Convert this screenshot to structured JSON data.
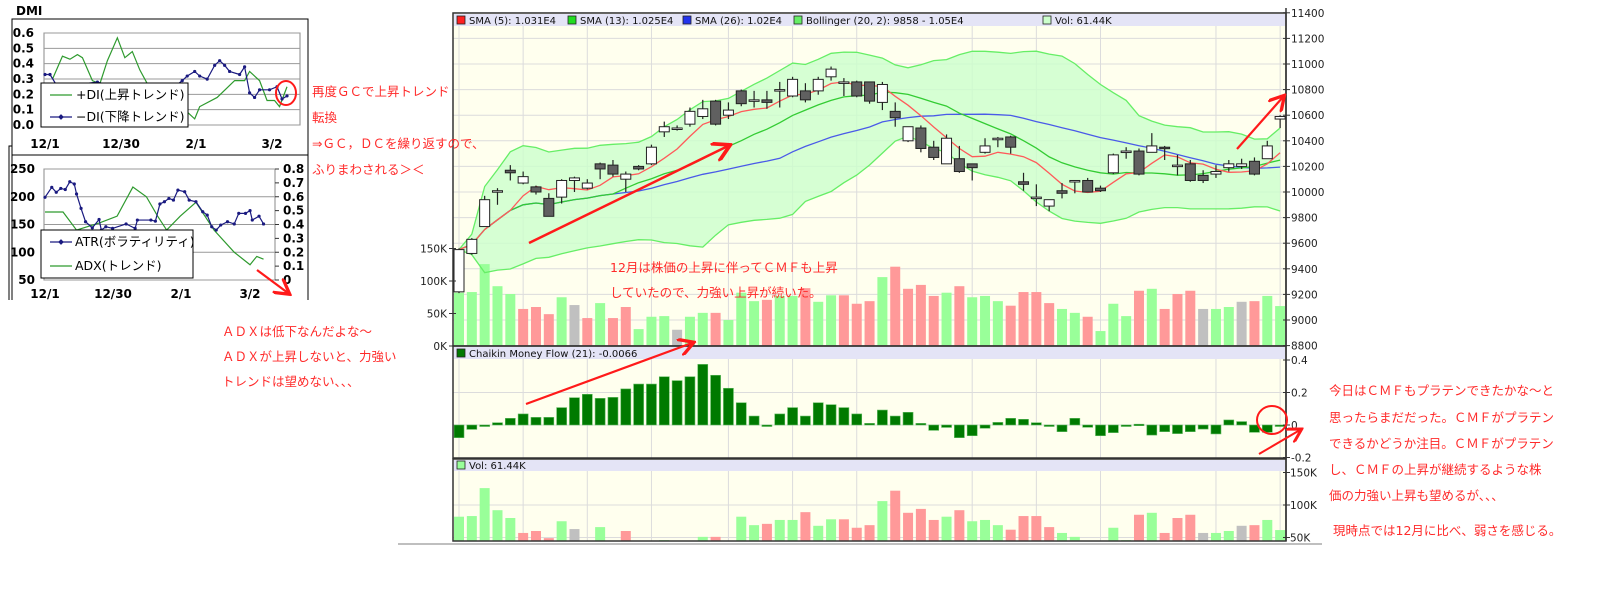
{
  "dmi_panel": {
    "title": "DMI",
    "top_chart": {
      "type": "line",
      "y_ticks": [
        "0.6",
        "0.5",
        "0.4",
        "0.3",
        "0.2",
        "0.1",
        "0.0"
      ],
      "x_ticks": [
        "12/1",
        "12/30",
        "2/1",
        "3/2"
      ],
      "series": [
        {
          "name": "+DI(上昇トレンド)",
          "color": "#2e9a2e",
          "points": [
            [
              "12/4",
              0.3
            ],
            [
              "12/8",
              0.45
            ],
            [
              "12/11",
              0.43
            ],
            [
              "12/14",
              0.46
            ],
            [
              "12/16",
              0.44
            ],
            [
              "12/20",
              0.29
            ],
            [
              "12/23",
              0.27
            ],
            [
              "12/26",
              0.42
            ],
            [
              "12/30",
              0.57
            ],
            [
              "1/2",
              0.44
            ],
            [
              "1/5",
              0.48
            ],
            [
              "1/8",
              0.36
            ],
            [
              "1/11",
              0.27
            ],
            [
              "1/16",
              0.23
            ],
            [
              "1/22",
              0.21
            ],
            [
              "1/26",
              0.1
            ],
            [
              "1/30",
              0.04
            ],
            [
              "2/1",
              0.12
            ],
            [
              "2/8",
              0.18
            ],
            [
              "2/15",
              0.29
            ],
            [
              "2/19",
              0.29
            ],
            [
              "2/21",
              0.35
            ],
            [
              "2/25",
              0.29
            ],
            [
              "2/28",
              0.16
            ],
            [
              "3/3",
              0.16
            ],
            [
              "3/5",
              0.12
            ],
            [
              "3/8",
              0.25
            ]
          ]
        },
        {
          "name": "−DI(下降トレンド)",
          "color": "#1a1a80",
          "points": [
            [
              "12/1",
              0.33
            ],
            [
              "12/3",
              0.33
            ],
            [
              "12/6",
              0.25
            ],
            [
              "12/22",
              0.28
            ],
            [
              "12/27",
              0.26
            ],
            [
              "1/14",
              0.25
            ],
            [
              "1/22",
              0.25
            ],
            [
              "1/25",
              0.29
            ],
            [
              "1/27",
              0.32
            ],
            [
              "1/30",
              0.35
            ],
            [
              "2/1",
              0.32
            ],
            [
              "2/4",
              0.3
            ],
            [
              "2/7",
              0.39
            ],
            [
              "2/9",
              0.42
            ],
            [
              "2/11",
              0.39
            ],
            [
              "2/13",
              0.35
            ],
            [
              "2/17",
              0.33
            ],
            [
              "2/19",
              0.38
            ],
            [
              "2/21",
              0.21
            ],
            [
              "2/23",
              0.18
            ],
            [
              "2/25",
              0.23
            ],
            [
              "3/1",
              0.23
            ],
            [
              "3/4",
              0.25
            ],
            [
              "3/6",
              0.17
            ],
            [
              "3/8",
              0.19
            ]
          ]
        }
      ]
    },
    "bottom_chart": {
      "type": "line",
      "y_left_ticks": [
        "250",
        "200",
        "150",
        "100",
        "50"
      ],
      "y_right_ticks": [
        "0.8",
        "0.7",
        "0.6",
        "0.5",
        "0.4",
        "0.3",
        "0.2",
        "0.1",
        "0"
      ],
      "x_ticks": [
        "12/1",
        "12/30",
        "2/1",
        "3/2"
      ],
      "series": [
        {
          "name": "ATR(ボラティリティ)",
          "axis": "left",
          "color": "#1a1a80",
          "points": [
            [
              "12/1",
              199
            ],
            [
              "12/4",
              217
            ],
            [
              "12/6",
              208
            ],
            [
              "12/8",
              215
            ],
            [
              "12/10",
              213
            ],
            [
              "12/12",
              227
            ],
            [
              "12/14",
              223
            ],
            [
              "12/15",
              205
            ],
            [
              "12/17",
              179
            ],
            [
              "12/19",
              155
            ],
            [
              "12/22",
              144
            ],
            [
              "12/25",
              159
            ],
            [
              "12/26",
              140
            ],
            [
              "12/28",
              146
            ],
            [
              "12/31",
              143
            ],
            [
              "1/6",
              151
            ],
            [
              "1/10",
              143
            ],
            [
              "1/11",
              158
            ],
            [
              "1/17",
              158
            ],
            [
              "1/19",
              156
            ],
            [
              "1/21",
              187
            ],
            [
              "1/23",
              191
            ],
            [
              "1/25",
              197
            ],
            [
              "1/27",
              194
            ],
            [
              "1/29",
              212
            ],
            [
              "2/1",
              209
            ],
            [
              "2/3",
              194
            ],
            [
              "2/6",
              191
            ],
            [
              "2/9",
              173
            ],
            [
              "2/11",
              167
            ],
            [
              "2/13",
              146
            ],
            [
              "2/15",
              140
            ],
            [
              "2/17",
              149
            ],
            [
              "2/20",
              155
            ],
            [
              "2/23",
              151
            ],
            [
              "2/25",
              170
            ],
            [
              "2/28",
              170
            ],
            [
              "3/2",
              175
            ],
            [
              "3/3",
              158
            ],
            [
              "3/6",
              165
            ],
            [
              "3/8",
              151
            ]
          ]
        },
        {
          "name": "ADX(トレンド)",
          "axis": "right",
          "color": "#2e9a2e",
          "points": [
            [
              "12/1",
              0.49
            ],
            [
              "12/9",
              0.49
            ],
            [
              "12/15",
              0.36
            ],
            [
              "12/25",
              0.41
            ],
            [
              "1/2",
              0.46
            ],
            [
              "1/9",
              0.67
            ],
            [
              "1/15",
              0.6
            ],
            [
              "1/20",
              0.46
            ],
            [
              "1/24",
              0.36
            ],
            [
              "1/30",
              0.46
            ],
            [
              "2/6",
              0.56
            ],
            [
              "2/14",
              0.36
            ],
            [
              "2/23",
              0.2
            ],
            [
              "3/2",
              0.11
            ],
            [
              "3/5",
              0.17
            ],
            [
              "3/8",
              0.15
            ]
          ]
        }
      ]
    }
  },
  "notes": {
    "gc": [
      "再度ＧＣで上昇トレンド",
      "転換",
      "⇒ＧＣ，ＤＣを繰り返すので、",
      "ふりまわされる＞＜"
    ],
    "adx": [
      "ＡＤＸは低下なんだよな～",
      "ＡＤＸが上昇しないと、力強い",
      "トレンドは望めない、、、"
    ],
    "december": [
      "12月は株価の上昇に伴ってＣＭＦも上昇",
      "していたので、力強い上昇が続いた。"
    ],
    "cmf": [
      "今日はＣＭＦもプラテンできたかな～と",
      "思ったらまだだった。ＣＭＦがプラテン",
      "できるかどうか注目。ＣＭＦがプラテン",
      "し、ＣＭＦの上昇が継続するような株",
      "価の力強い上昇も望めるが、、、",
      "現時点では12月に比べ、弱さを感じる。"
    ]
  },
  "colors": {
    "annotation": "#ff2a2a",
    "sma5": "#ff5a5a",
    "sma13": "#33cc33",
    "sma26": "#4a5ae8",
    "bollinger": "#66ee66",
    "vol_up": "#99ff99",
    "vol_down": "#ff9999",
    "vol_flat": "#c0c0c0",
    "cmf": "#007a00",
    "plot_bg": "#ffffee",
    "header_bg": "#e4e4f6"
  },
  "chart_data": {
    "type": "candlestick",
    "legend": [
      {
        "label": "SMA (5): 1.031E4",
        "color": "#ff2020"
      },
      {
        "label": "SMA (13): 1.025E4",
        "color": "#22dd22"
      },
      {
        "label": "SMA (26): 1.02E4",
        "color": "#2233ee"
      },
      {
        "label": "Bollinger (20, 2): 9858 - 1.05E4",
        "color": "#66ee66"
      },
      {
        "label": "Vol: 61.44K",
        "color": "#ccffcc"
      }
    ],
    "price_ticks": [
      8800,
      9000,
      9200,
      9400,
      9600,
      9800,
      10000,
      10200,
      10400,
      10600,
      10800,
      11000,
      11200,
      11400
    ],
    "volume_ticks": [
      "0K",
      "50K",
      "100K",
      "150K"
    ],
    "ohlc": [
      [
        9220,
        9560,
        9210,
        9550
      ],
      [
        9520,
        9640,
        9510,
        9630
      ],
      [
        9730,
        9970,
        9730,
        9940
      ],
      [
        10000,
        10030,
        9900,
        10010
      ],
      [
        10170,
        10210,
        10090,
        10150
      ],
      [
        10070,
        10160,
        10060,
        10120
      ],
      [
        10040,
        10050,
        9980,
        10000
      ],
      [
        9950,
        9990,
        9810,
        9810
      ],
      [
        9960,
        10100,
        9910,
        10090
      ],
      [
        10090,
        10120,
        10000,
        10110
      ],
      [
        10030,
        10100,
        10020,
        10070
      ],
      [
        10220,
        10230,
        10100,
        10180
      ],
      [
        10210,
        10250,
        10120,
        10140
      ],
      [
        10100,
        10160,
        10000,
        10140
      ],
      [
        10200,
        10210,
        10170,
        10180
      ],
      [
        10220,
        10370,
        10210,
        10350
      ],
      [
        10470,
        10550,
        10430,
        10510
      ],
      [
        10500,
        10520,
        10480,
        10500
      ],
      [
        10530,
        10660,
        10510,
        10630
      ],
      [
        10590,
        10720,
        10570,
        10650
      ],
      [
        10710,
        10720,
        10520,
        10530
      ],
      [
        10600,
        10700,
        10570,
        10640
      ],
      [
        10790,
        10800,
        10670,
        10690
      ],
      [
        10710,
        10790,
        10660,
        10720
      ],
      [
        10720,
        10790,
        10650,
        10700
      ],
      [
        10790,
        10860,
        10660,
        10800
      ],
      [
        10750,
        10900,
        10740,
        10880
      ],
      [
        10790,
        10850,
        10700,
        10720
      ],
      [
        10790,
        10900,
        10760,
        10880
      ],
      [
        10900,
        10980,
        10870,
        10960
      ],
      [
        10850,
        10890,
        10750,
        10860
      ],
      [
        10860,
        10870,
        10740,
        10750
      ],
      [
        10860,
        10860,
        10690,
        10710
      ],
      [
        10700,
        10860,
        10640,
        10840
      ],
      [
        10630,
        10700,
        10510,
        10580
      ],
      [
        10400,
        10510,
        10390,
        10510
      ],
      [
        10500,
        10520,
        10310,
        10340
      ],
      [
        10350,
        10400,
        10250,
        10270
      ],
      [
        10220,
        10450,
        10220,
        10420
      ],
      [
        10260,
        10360,
        10150,
        10160
      ],
      [
        10220,
        10220,
        10090,
        10190
      ],
      [
        10310,
        10420,
        10300,
        10360
      ],
      [
        10420,
        10430,
        10350,
        10420
      ],
      [
        10430,
        10440,
        10300,
        10350
      ],
      [
        10080,
        10150,
        10010,
        10060
      ],
      [
        9950,
        10060,
        9890,
        9960
      ],
      [
        9890,
        9940,
        9850,
        9940
      ],
      [
        10010,
        10070,
        9950,
        9990
      ],
      [
        10080,
        10090,
        9990,
        10090
      ],
      [
        10090,
        10110,
        10000,
        10000
      ],
      [
        10030,
        10050,
        10000,
        10010
      ],
      [
        10150,
        10300,
        10140,
        10290
      ],
      [
        10310,
        10350,
        10260,
        10320
      ],
      [
        10320,
        10340,
        10130,
        10140
      ],
      [
        10310,
        10460,
        10310,
        10360
      ],
      [
        10350,
        10360,
        10250,
        10340
      ],
      [
        10200,
        10290,
        10130,
        10210
      ],
      [
        10220,
        10250,
        10080,
        10090
      ],
      [
        10130,
        10170,
        10070,
        10090
      ],
      [
        10140,
        10210,
        10110,
        10160
      ],
      [
        10190,
        10250,
        10160,
        10220
      ],
      [
        10200,
        10260,
        10180,
        10220
      ],
      [
        10240,
        10270,
        10130,
        10140
      ],
      [
        10260,
        10400,
        10260,
        10360
      ],
      [
        10570,
        10600,
        10500,
        10590
      ]
    ],
    "volume_k": [
      82,
      83,
      126,
      92,
      80,
      57,
      60,
      49,
      75,
      63,
      43,
      66,
      43,
      60,
      26,
      45,
      46,
      25,
      45,
      51,
      51,
      40,
      82,
      69,
      71,
      77,
      77,
      89,
      68,
      78,
      78,
      65,
      69,
      106,
      122,
      88,
      94,
      77,
      82,
      92,
      75,
      77,
      69,
      62,
      83,
      83,
      66,
      57,
      51,
      45,
      23,
      65,
      46,
      85,
      88,
      57,
      80,
      85,
      57,
      57,
      60,
      68,
      69,
      77,
      61.44
    ],
    "volume_dir": [
      "u",
      "u",
      "u",
      "u",
      "u",
      "d",
      "d",
      "d",
      "u",
      "f",
      "d",
      "u",
      "d",
      "d",
      "u",
      "u",
      "u",
      "f",
      "u",
      "u",
      "d",
      "u",
      "u",
      "u",
      "d",
      "u",
      "u",
      "d",
      "u",
      "u",
      "d",
      "d",
      "d",
      "u",
      "d",
      "d",
      "d",
      "d",
      "u",
      "d",
      "u",
      "u",
      "u",
      "d",
      "d",
      "d",
      "d",
      "u",
      "u",
      "d",
      "u",
      "u",
      "u",
      "d",
      "u",
      "d",
      "d",
      "d",
      "f",
      "u",
      "u",
      "f",
      "d",
      "u",
      "u"
    ],
    "grid_candles": [
      1,
      6,
      11,
      16,
      22,
      27,
      32,
      41,
      46,
      51,
      60,
      65
    ],
    "cmf": {
      "label": "Chaikin Money Flow (21): -0.0066",
      "ticks": [
        "0.4",
        "0.2",
        "0",
        "-0.2"
      ],
      "values": [
        -0.078,
        -0.027,
        -0.008,
        0.014,
        0.041,
        0.068,
        0.047,
        0.047,
        0.107,
        0.168,
        0.189,
        0.164,
        0.17,
        0.222,
        0.252,
        0.252,
        0.297,
        0.273,
        0.297,
        0.373,
        0.306,
        0.226,
        0.137,
        0.055,
        0.0,
        0.068,
        0.107,
        0.055,
        0.137,
        0.125,
        0.107,
        0.068,
        0.01,
        0.092,
        0.055,
        0.078,
        0.01,
        -0.033,
        -0.015,
        -0.078,
        -0.066,
        -0.02,
        0.016,
        0.041,
        0.035,
        0.014,
        0.0,
        -0.041,
        0.041,
        -0.014,
        -0.066,
        -0.047,
        0.0,
        0.005,
        -0.062,
        -0.041,
        -0.053,
        -0.041,
        -0.025,
        -0.055,
        0.031,
        0.021,
        -0.045,
        -0.045,
        -0.0066
      ]
    },
    "volume_pane": {
      "label": "Vol: 61.44K",
      "ticks": [
        "150K",
        "100K",
        "50K"
      ]
    }
  }
}
